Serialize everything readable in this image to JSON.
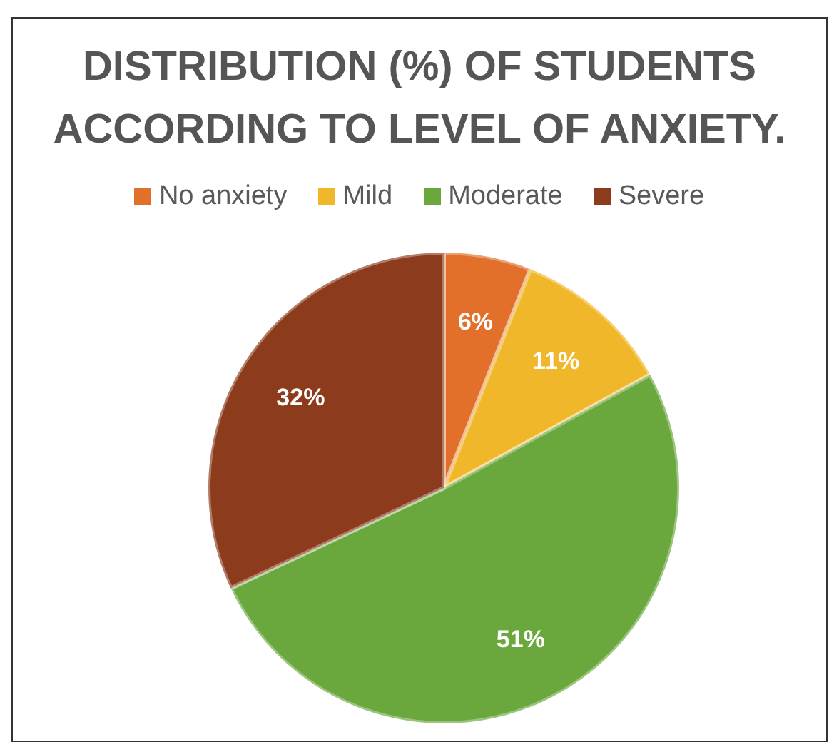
{
  "chart_data": {
    "type": "pie",
    "title": "DISTRIBUTION (%) OF STUDENTS ACCORDING TO LEVEL OF ANXIETY.",
    "categories": [
      "No anxiety",
      "Mild",
      "Moderate",
      "Severe"
    ],
    "values": [
      6,
      11,
      51,
      32
    ],
    "colors": [
      "#e2702a",
      "#f0b72a",
      "#6aa83e",
      "#8c3b1c"
    ],
    "value_labels": [
      "6%",
      "11%",
      "51%",
      "32%"
    ],
    "legend": "top"
  }
}
